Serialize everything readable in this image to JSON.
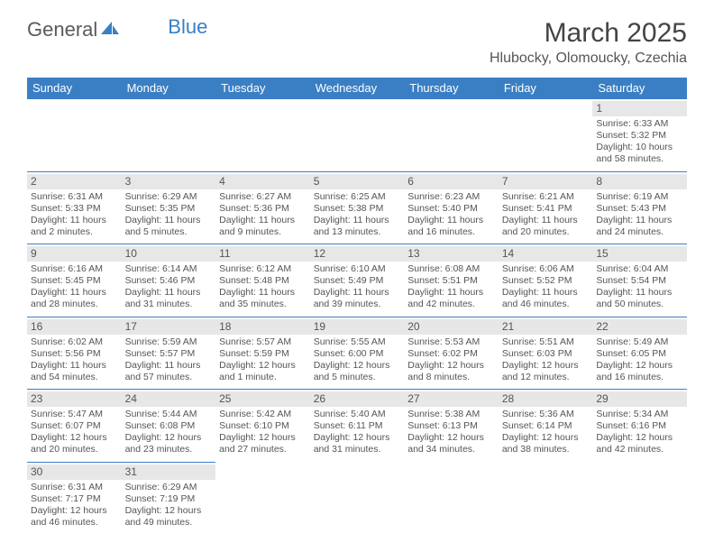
{
  "logo": {
    "part1": "General",
    "part2": "Blue"
  },
  "title": "March 2025",
  "location": "Hlubocky, Olomoucky, Czechia",
  "colors": {
    "header_bg": "#3a7fc4",
    "header_text": "#ffffff",
    "border": "#3a7fc4",
    "daynum_bg": "#e7e7e7",
    "text": "#555555"
  },
  "weekdays": [
    "Sunday",
    "Monday",
    "Tuesday",
    "Wednesday",
    "Thursday",
    "Friday",
    "Saturday"
  ],
  "weeks": [
    [
      null,
      null,
      null,
      null,
      null,
      null,
      {
        "n": "1",
        "sr": "Sunrise: 6:33 AM",
        "ss": "Sunset: 5:32 PM",
        "dl": "Daylight: 10 hours and 58 minutes."
      }
    ],
    [
      {
        "n": "2",
        "sr": "Sunrise: 6:31 AM",
        "ss": "Sunset: 5:33 PM",
        "dl": "Daylight: 11 hours and 2 minutes."
      },
      {
        "n": "3",
        "sr": "Sunrise: 6:29 AM",
        "ss": "Sunset: 5:35 PM",
        "dl": "Daylight: 11 hours and 5 minutes."
      },
      {
        "n": "4",
        "sr": "Sunrise: 6:27 AM",
        "ss": "Sunset: 5:36 PM",
        "dl": "Daylight: 11 hours and 9 minutes."
      },
      {
        "n": "5",
        "sr": "Sunrise: 6:25 AM",
        "ss": "Sunset: 5:38 PM",
        "dl": "Daylight: 11 hours and 13 minutes."
      },
      {
        "n": "6",
        "sr": "Sunrise: 6:23 AM",
        "ss": "Sunset: 5:40 PM",
        "dl": "Daylight: 11 hours and 16 minutes."
      },
      {
        "n": "7",
        "sr": "Sunrise: 6:21 AM",
        "ss": "Sunset: 5:41 PM",
        "dl": "Daylight: 11 hours and 20 minutes."
      },
      {
        "n": "8",
        "sr": "Sunrise: 6:19 AM",
        "ss": "Sunset: 5:43 PM",
        "dl": "Daylight: 11 hours and 24 minutes."
      }
    ],
    [
      {
        "n": "9",
        "sr": "Sunrise: 6:16 AM",
        "ss": "Sunset: 5:45 PM",
        "dl": "Daylight: 11 hours and 28 minutes."
      },
      {
        "n": "10",
        "sr": "Sunrise: 6:14 AM",
        "ss": "Sunset: 5:46 PM",
        "dl": "Daylight: 11 hours and 31 minutes."
      },
      {
        "n": "11",
        "sr": "Sunrise: 6:12 AM",
        "ss": "Sunset: 5:48 PM",
        "dl": "Daylight: 11 hours and 35 minutes."
      },
      {
        "n": "12",
        "sr": "Sunrise: 6:10 AM",
        "ss": "Sunset: 5:49 PM",
        "dl": "Daylight: 11 hours and 39 minutes."
      },
      {
        "n": "13",
        "sr": "Sunrise: 6:08 AM",
        "ss": "Sunset: 5:51 PM",
        "dl": "Daylight: 11 hours and 42 minutes."
      },
      {
        "n": "14",
        "sr": "Sunrise: 6:06 AM",
        "ss": "Sunset: 5:52 PM",
        "dl": "Daylight: 11 hours and 46 minutes."
      },
      {
        "n": "15",
        "sr": "Sunrise: 6:04 AM",
        "ss": "Sunset: 5:54 PM",
        "dl": "Daylight: 11 hours and 50 minutes."
      }
    ],
    [
      {
        "n": "16",
        "sr": "Sunrise: 6:02 AM",
        "ss": "Sunset: 5:56 PM",
        "dl": "Daylight: 11 hours and 54 minutes."
      },
      {
        "n": "17",
        "sr": "Sunrise: 5:59 AM",
        "ss": "Sunset: 5:57 PM",
        "dl": "Daylight: 11 hours and 57 minutes."
      },
      {
        "n": "18",
        "sr": "Sunrise: 5:57 AM",
        "ss": "Sunset: 5:59 PM",
        "dl": "Daylight: 12 hours and 1 minute."
      },
      {
        "n": "19",
        "sr": "Sunrise: 5:55 AM",
        "ss": "Sunset: 6:00 PM",
        "dl": "Daylight: 12 hours and 5 minutes."
      },
      {
        "n": "20",
        "sr": "Sunrise: 5:53 AM",
        "ss": "Sunset: 6:02 PM",
        "dl": "Daylight: 12 hours and 8 minutes."
      },
      {
        "n": "21",
        "sr": "Sunrise: 5:51 AM",
        "ss": "Sunset: 6:03 PM",
        "dl": "Daylight: 12 hours and 12 minutes."
      },
      {
        "n": "22",
        "sr": "Sunrise: 5:49 AM",
        "ss": "Sunset: 6:05 PM",
        "dl": "Daylight: 12 hours and 16 minutes."
      }
    ],
    [
      {
        "n": "23",
        "sr": "Sunrise: 5:47 AM",
        "ss": "Sunset: 6:07 PM",
        "dl": "Daylight: 12 hours and 20 minutes."
      },
      {
        "n": "24",
        "sr": "Sunrise: 5:44 AM",
        "ss": "Sunset: 6:08 PM",
        "dl": "Daylight: 12 hours and 23 minutes."
      },
      {
        "n": "25",
        "sr": "Sunrise: 5:42 AM",
        "ss": "Sunset: 6:10 PM",
        "dl": "Daylight: 12 hours and 27 minutes."
      },
      {
        "n": "26",
        "sr": "Sunrise: 5:40 AM",
        "ss": "Sunset: 6:11 PM",
        "dl": "Daylight: 12 hours and 31 minutes."
      },
      {
        "n": "27",
        "sr": "Sunrise: 5:38 AM",
        "ss": "Sunset: 6:13 PM",
        "dl": "Daylight: 12 hours and 34 minutes."
      },
      {
        "n": "28",
        "sr": "Sunrise: 5:36 AM",
        "ss": "Sunset: 6:14 PM",
        "dl": "Daylight: 12 hours and 38 minutes."
      },
      {
        "n": "29",
        "sr": "Sunrise: 5:34 AM",
        "ss": "Sunset: 6:16 PM",
        "dl": "Daylight: 12 hours and 42 minutes."
      }
    ],
    [
      {
        "n": "30",
        "sr": "Sunrise: 6:31 AM",
        "ss": "Sunset: 7:17 PM",
        "dl": "Daylight: 12 hours and 46 minutes."
      },
      {
        "n": "31",
        "sr": "Sunrise: 6:29 AM",
        "ss": "Sunset: 7:19 PM",
        "dl": "Daylight: 12 hours and 49 minutes."
      },
      null,
      null,
      null,
      null,
      null
    ]
  ]
}
